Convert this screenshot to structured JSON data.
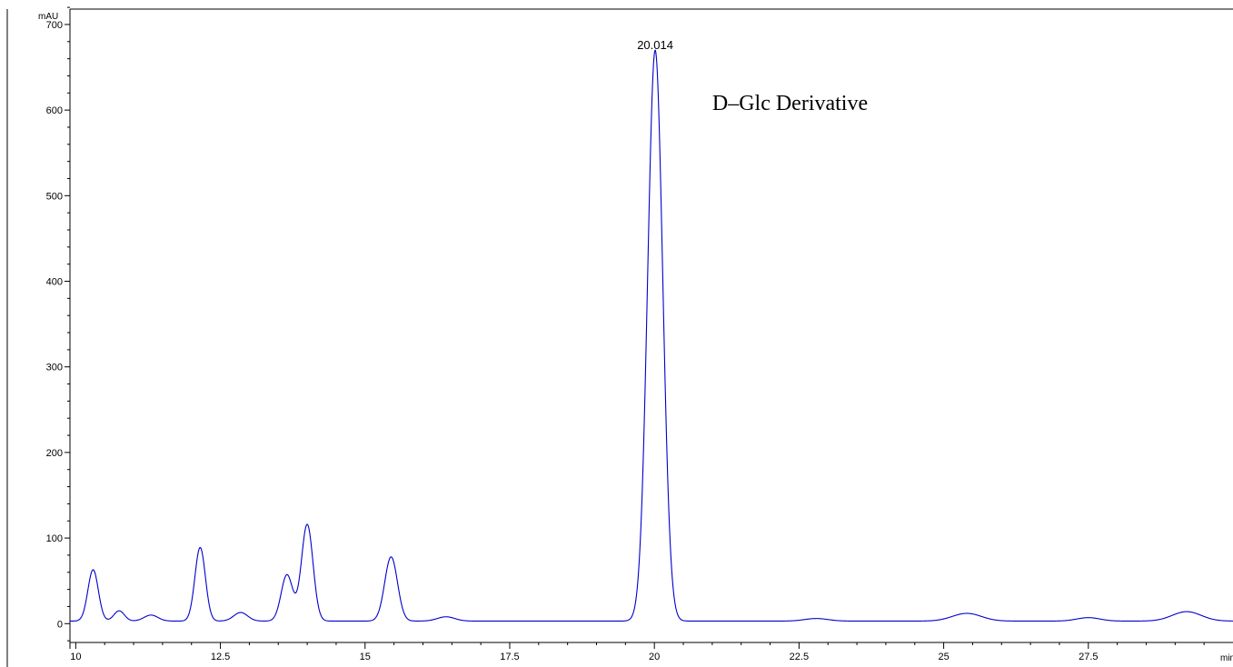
{
  "chart_data": {
    "type": "line",
    "ylabel": "mAU",
    "xlabel": "min",
    "xlim": [
      9.9,
      30.0
    ],
    "ylim": [
      -22,
      718
    ],
    "x_ticks": [
      10,
      12.5,
      15,
      17.5,
      20,
      22.5,
      25,
      27.5
    ],
    "x_tick_labels": [
      "10",
      "12.5",
      "15",
      "17.5",
      "20",
      "22.5",
      "25",
      "27.5"
    ],
    "y_ticks": [
      0,
      100,
      200,
      300,
      400,
      500,
      600,
      700
    ],
    "y_tick_labels": [
      "0",
      "100",
      "200",
      "300",
      "400",
      "500",
      "600",
      "700"
    ],
    "grid": false,
    "legend": "none",
    "line_color": "#0000cc",
    "baseline": 3,
    "peaks": [
      {
        "rt": 10.3,
        "height": 60,
        "width": 0.09
      },
      {
        "rt": 10.75,
        "height": 12,
        "width": 0.09
      },
      {
        "rt": 11.3,
        "height": 7,
        "width": 0.12
      },
      {
        "rt": 12.15,
        "height": 86,
        "width": 0.09
      },
      {
        "rt": 12.85,
        "height": 10,
        "width": 0.12
      },
      {
        "rt": 13.65,
        "height": 54,
        "width": 0.1
      },
      {
        "rt": 14.0,
        "height": 113,
        "width": 0.1
      },
      {
        "rt": 15.45,
        "height": 75,
        "width": 0.11
      },
      {
        "rt": 16.4,
        "height": 5,
        "width": 0.15
      },
      {
        "rt": 20.014,
        "height": 667,
        "width": 0.13
      },
      {
        "rt": 22.8,
        "height": 3,
        "width": 0.2
      },
      {
        "rt": 25.4,
        "height": 9,
        "width": 0.25
      },
      {
        "rt": 27.5,
        "height": 4,
        "width": 0.2
      },
      {
        "rt": 29.2,
        "height": 11,
        "width": 0.25
      }
    ],
    "peak_label": {
      "text": "20.014",
      "rt": 20.014,
      "y": 667
    },
    "annotations": [
      {
        "text": "D–Glc Derivative",
        "rt": 21.0,
        "y": 600
      }
    ]
  }
}
